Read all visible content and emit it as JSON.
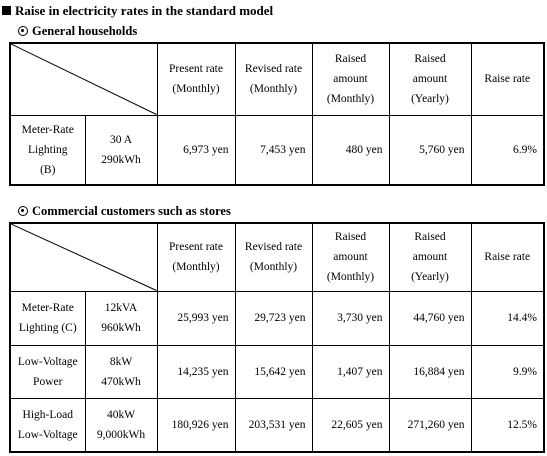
{
  "title": "Raise in electricity rates in the standard model",
  "households": {
    "heading": "General households",
    "headers": {
      "present": [
        "Present rate",
        "(Monthly)"
      ],
      "revised": [
        "Revised rate",
        "(Monthly)"
      ],
      "raised_monthly": [
        "Raised",
        "amount",
        "(Monthly)"
      ],
      "raised_yearly": [
        "Raised",
        "amount",
        "(Yearly)"
      ],
      "raise_rate": "Raise rate"
    },
    "rows": [
      {
        "type": [
          "Meter-Rate",
          "Lighting",
          "(B)"
        ],
        "spec": [
          "30 A",
          "290kWh"
        ],
        "present": "6,973 yen",
        "revised": "7,453  yen",
        "raised_monthly": "480  yen",
        "raised_yearly": "5,760  yen",
        "rate": "6.9%"
      }
    ]
  },
  "commercial": {
    "heading": "Commercial customers such as stores",
    "headers": {
      "present": [
        "Present rate",
        "(Monthly)"
      ],
      "revised": [
        "Revised rate",
        "(Monthly)"
      ],
      "raised_monthly": [
        "Raised",
        "amount",
        "(Monthly)"
      ],
      "raised_yearly": [
        "Raised",
        "amount",
        "(Yearly)"
      ],
      "raise_rate": "Raise rate"
    },
    "rows": [
      {
        "type": [
          "Meter-Rate",
          "Lighting (C)"
        ],
        "spec": [
          "12kVA",
          "960kWh"
        ],
        "present": "25,993 yen",
        "revised": "29,723 yen",
        "raised_monthly": "3,730  yen",
        "raised_yearly": "44,760 yen",
        "rate": "14.4%"
      },
      {
        "type": [
          "Low-Voltage",
          "Power"
        ],
        "spec": [
          "8kW",
          "470kWh"
        ],
        "present": "14,235 yen",
        "revised": "15,642 yen",
        "raised_monthly": "1,407 yen",
        "raised_yearly": "16,884 yen",
        "rate": "9.9%"
      },
      {
        "type": [
          "High-Load",
          "Low-Voltage"
        ],
        "spec": [
          "40kW",
          "9,000kWh"
        ],
        "present": "180,926  yen",
        "revised": "203,531 yen",
        "raised_monthly": "22,605 yen",
        "raised_yearly": "271,260 yen",
        "rate": "12.5%"
      }
    ]
  }
}
